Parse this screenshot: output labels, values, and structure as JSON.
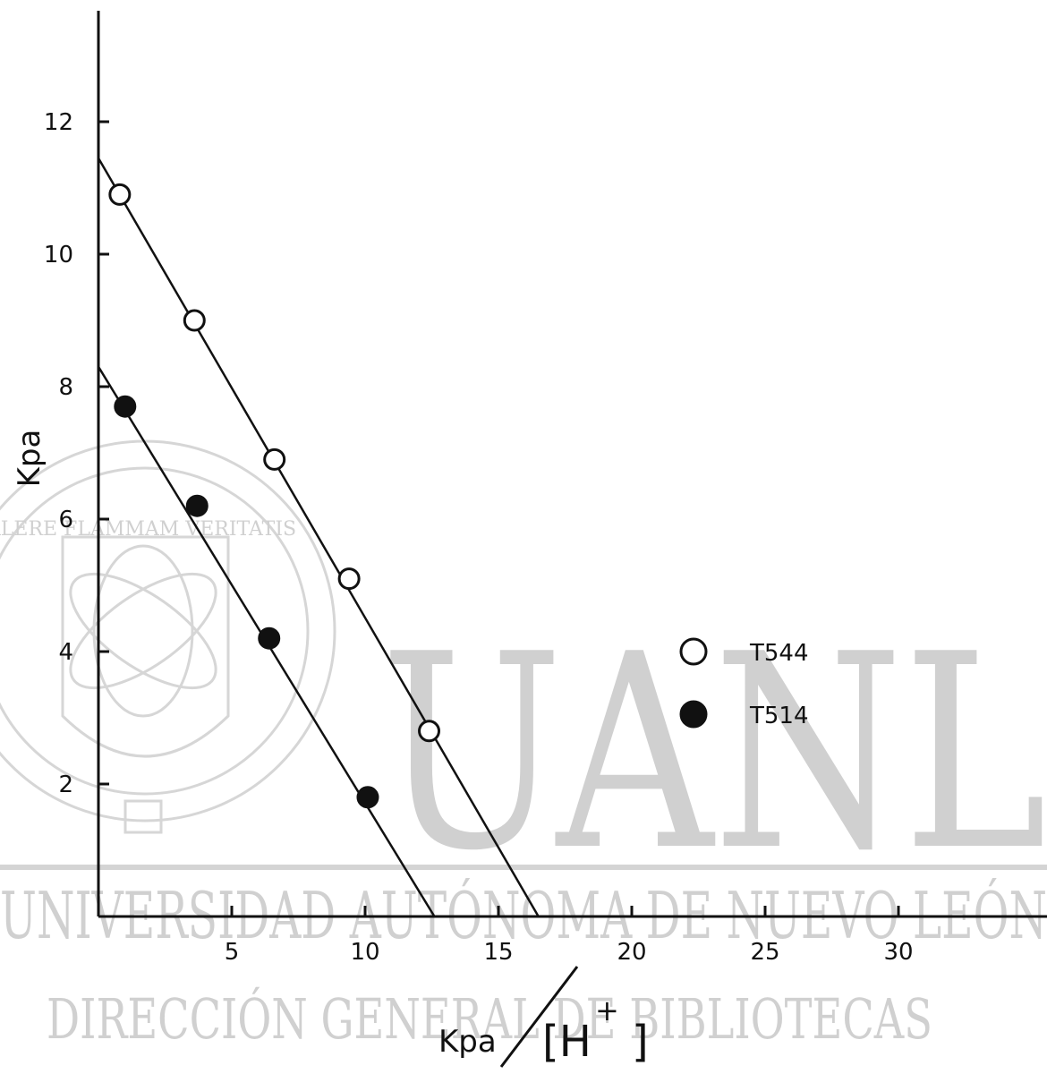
{
  "watermark": {
    "big_letters": "UANL",
    "line1": "UNIVERSIDAD AUTÓNOMA DE NUEVO LEÓN",
    "line2": "DIRECCIÓN GENERAL DE BIBLIOTECAS",
    "seal_ring": "UNIVERSIDAD AUTÓNOMA DE NUEVO LEÓN",
    "seal_motto": "ALERE FLAMMAM VERITATIS",
    "color": "#d0d0d0"
  },
  "chart_data": {
    "type": "scatter",
    "xlabel_parts": [
      "Kpa",
      "[H",
      "+",
      "]"
    ],
    "ylabel": "Kpa",
    "xlim": [
      0,
      35
    ],
    "ylim": [
      0,
      13
    ],
    "x_ticks": [
      5,
      10,
      15,
      20,
      25,
      30
    ],
    "y_ticks": [
      2,
      4,
      6,
      8,
      10,
      12
    ],
    "legend_position": "right",
    "series": [
      {
        "name": "T544",
        "marker": "open-circle",
        "points": [
          [
            0.8,
            10.9
          ],
          [
            3.6,
            9.0
          ],
          [
            6.6,
            6.9
          ],
          [
            9.4,
            5.1
          ],
          [
            12.4,
            2.8
          ]
        ],
        "fit_line": [
          [
            0,
            11.45
          ],
          [
            16.5,
            0
          ]
        ]
      },
      {
        "name": "T514",
        "marker": "filled-circle",
        "points": [
          [
            1.0,
            7.7
          ],
          [
            3.7,
            6.2
          ],
          [
            6.4,
            4.2
          ],
          [
            10.1,
            1.8
          ]
        ],
        "fit_line": [
          [
            0,
            8.3
          ],
          [
            12.6,
            0
          ]
        ]
      }
    ],
    "colors": {
      "ink": "#111111"
    }
  }
}
